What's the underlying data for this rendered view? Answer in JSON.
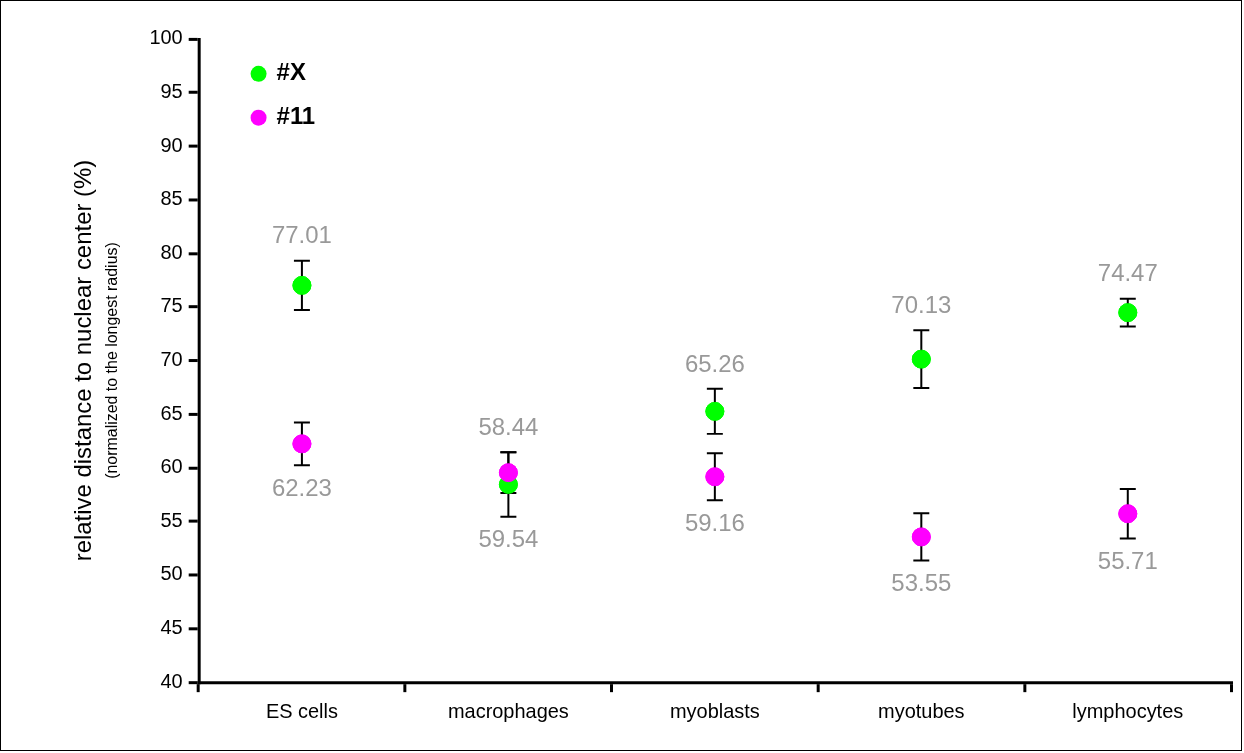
{
  "chart_data": {
    "type": "scatter",
    "ylabel": "relative distance to nuclear center (%)",
    "annotations": [
      "(normalized to the longest radius)"
    ],
    "categories": [
      "ES cells",
      "macrophages",
      "myoblasts",
      "myotubes",
      "lymphocytes"
    ],
    "series": [
      {
        "name": "#X",
        "color": "#00ff00",
        "values": [
          77.01,
          58.44,
          65.26,
          70.13,
          74.47
        ],
        "errors": [
          2.3,
          3.0,
          2.1,
          2.7,
          1.3
        ]
      },
      {
        "name": "#11",
        "color": "#ff00ff",
        "values": [
          62.23,
          59.54,
          59.16,
          53.55,
          55.71
        ],
        "errors": [
          2.0,
          1.9,
          2.2,
          2.2,
          2.3
        ]
      }
    ],
    "ylim": [
      40,
      100
    ],
    "yticks": [
      40,
      45,
      50,
      55,
      60,
      65,
      70,
      75,
      80,
      85,
      90,
      95,
      100
    ],
    "grid": false,
    "legend": "top left",
    "marker": "circle",
    "data_labels": true
  }
}
